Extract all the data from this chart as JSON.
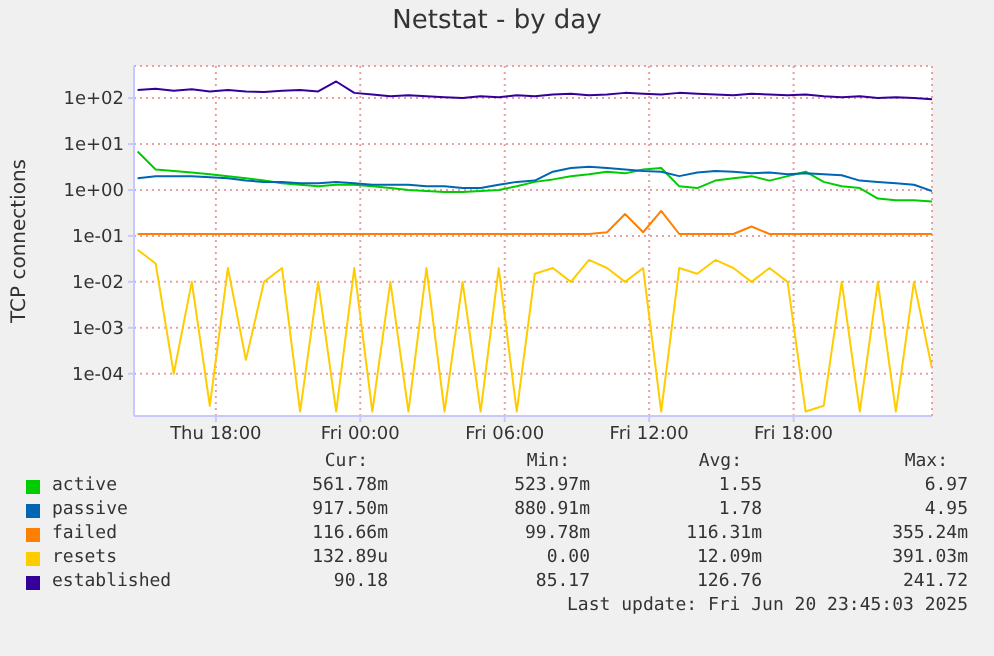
{
  "chart_data": {
    "type": "line",
    "title": "Netstat - by day",
    "ylabel": "TCP connections",
    "log": "y",
    "grid": true,
    "legend": "bottom",
    "marker": "none",
    "line_style": "solid",
    "x": [
      "2025-06-19T14:45",
      "2025-06-19T15:30",
      "2025-06-19T16:15",
      "2025-06-19T17:00",
      "2025-06-19T17:45",
      "2025-06-19T18:30",
      "2025-06-19T19:15",
      "2025-06-19T20:00",
      "2025-06-19T20:45",
      "2025-06-19T21:30",
      "2025-06-19T22:15",
      "2025-06-19T23:00",
      "2025-06-19T23:45",
      "2025-06-20T00:30",
      "2025-06-20T01:15",
      "2025-06-20T02:00",
      "2025-06-20T02:45",
      "2025-06-20T03:30",
      "2025-06-20T04:15",
      "2025-06-20T05:00",
      "2025-06-20T05:45",
      "2025-06-20T06:30",
      "2025-06-20T07:15",
      "2025-06-20T08:00",
      "2025-06-20T08:45",
      "2025-06-20T09:30",
      "2025-06-20T10:15",
      "2025-06-20T11:00",
      "2025-06-20T11:45",
      "2025-06-20T12:30",
      "2025-06-20T13:15",
      "2025-06-20T14:00",
      "2025-06-20T14:45",
      "2025-06-20T15:30",
      "2025-06-20T16:15",
      "2025-06-20T17:00",
      "2025-06-20T17:45",
      "2025-06-20T18:30",
      "2025-06-20T19:15",
      "2025-06-20T20:00",
      "2025-06-20T20:45",
      "2025-06-20T21:30",
      "2025-06-20T22:15",
      "2025-06-20T23:00",
      "2025-06-20T23:45"
    ],
    "xlim": [
      "2025-06-19T14:36",
      "2025-06-20T23:45"
    ],
    "xticks": [
      {
        "value": "2025-06-19T18:00",
        "label": "Thu 18:00"
      },
      {
        "value": "2025-06-20T00:00",
        "label": "Fri 00:00"
      },
      {
        "value": "2025-06-20T06:00",
        "label": "Fri 06:00"
      },
      {
        "value": "2025-06-20T12:00",
        "label": "Fri 12:00"
      },
      {
        "value": "2025-06-20T18:00",
        "label": "Fri 18:00"
      }
    ],
    "ylim": [
      1.2e-05,
      500
    ],
    "yticks": [
      {
        "value": 0.0001,
        "label": "1e-04"
      },
      {
        "value": 0.001,
        "label": "1e-03"
      },
      {
        "value": 0.01,
        "label": "1e-02"
      },
      {
        "value": 0.1,
        "label": "1e-01"
      },
      {
        "value": 1,
        "label": "1e+00"
      },
      {
        "value": 10,
        "label": "1e+01"
      },
      {
        "value": 100,
        "label": "1e+02"
      }
    ],
    "series": [
      {
        "name": "active",
        "color": "#00cc00",
        "values": [
          6.9,
          2.8,
          2.6,
          2.4,
          2.2,
          2.0,
          1.8,
          1.6,
          1.4,
          1.3,
          1.2,
          1.3,
          1.3,
          1.2,
          1.1,
          1.0,
          0.95,
          0.9,
          0.9,
          0.95,
          1.0,
          1.2,
          1.5,
          1.7,
          2.0,
          2.2,
          2.5,
          2.3,
          2.8,
          3.0,
          1.2,
          1.1,
          1.6,
          1.8,
          2.0,
          1.6,
          2.0,
          2.5,
          1.5,
          1.2,
          1.1,
          0.65,
          0.6,
          0.6,
          0.56
        ]
      },
      {
        "name": "passive",
        "color": "#0066b3",
        "values": [
          1.8,
          2.0,
          2.0,
          2.0,
          1.9,
          1.8,
          1.6,
          1.5,
          1.5,
          1.4,
          1.4,
          1.5,
          1.4,
          1.3,
          1.3,
          1.3,
          1.2,
          1.2,
          1.1,
          1.1,
          1.3,
          1.5,
          1.6,
          2.5,
          3.0,
          3.2,
          3.0,
          2.8,
          2.6,
          2.5,
          2.0,
          2.4,
          2.6,
          2.5,
          2.3,
          2.4,
          2.2,
          2.3,
          2.2,
          2.1,
          1.6,
          1.5,
          1.4,
          1.3,
          0.95
        ]
      },
      {
        "name": "failed",
        "color": "#ff8000",
        "values": [
          0.11,
          0.11,
          0.11,
          0.11,
          0.11,
          0.11,
          0.11,
          0.11,
          0.11,
          0.11,
          0.11,
          0.11,
          0.11,
          0.11,
          0.11,
          0.11,
          0.11,
          0.11,
          0.11,
          0.11,
          0.11,
          0.11,
          0.11,
          0.11,
          0.11,
          0.11,
          0.12,
          0.3,
          0.12,
          0.35,
          0.11,
          0.11,
          0.11,
          0.11,
          0.16,
          0.11,
          0.11,
          0.11,
          0.11,
          0.11,
          0.11,
          0.11,
          0.11,
          0.11,
          0.11
        ]
      },
      {
        "name": "resets",
        "color": "#ffcc00",
        "values": [
          0.05,
          0.025,
          0.0001,
          0.01,
          2e-05,
          0.02,
          0.0002,
          0.01,
          0.02,
          1.5e-05,
          0.01,
          1.5e-05,
          0.02,
          1.5e-05,
          0.01,
          1.5e-05,
          0.02,
          1.5e-05,
          0.01,
          1.5e-05,
          0.02,
          1.5e-05,
          0.015,
          0.02,
          0.01,
          0.03,
          0.02,
          0.01,
          0.02,
          1.5e-05,
          0.02,
          0.015,
          0.03,
          0.02,
          0.01,
          0.02,
          0.01,
          1.5e-05,
          2e-05,
          0.01,
          1.5e-05,
          0.01,
          1.5e-05,
          0.01,
          0.00013
        ]
      },
      {
        "name": "established",
        "color": "#330099",
        "values": [
          150,
          160,
          145,
          155,
          140,
          150,
          140,
          135,
          145,
          150,
          140,
          230,
          130,
          120,
          110,
          115,
          110,
          105,
          100,
          110,
          105,
          115,
          110,
          120,
          125,
          115,
          120,
          130,
          125,
          120,
          130,
          125,
          120,
          115,
          125,
          120,
          115,
          120,
          110,
          105,
          110,
          100,
          105,
          100,
          95
        ]
      }
    ],
    "annotations": [
      "Cur:",
      "Min:",
      "Avg:",
      "Max:",
      "561.78m",
      "523.97m",
      "1.55",
      "6.97",
      "917.50m",
      "880.91m",
      "1.78",
      "4.95",
      "116.66m",
      "99.78m",
      "116.31m",
      "355.24m",
      "132.89u",
      "0.00",
      "12.09m",
      "391.03m",
      "90.18",
      "85.17",
      "126.76",
      "241.72",
      "Last update: Fri Jun 20 23:45:03 2025"
    ]
  }
}
